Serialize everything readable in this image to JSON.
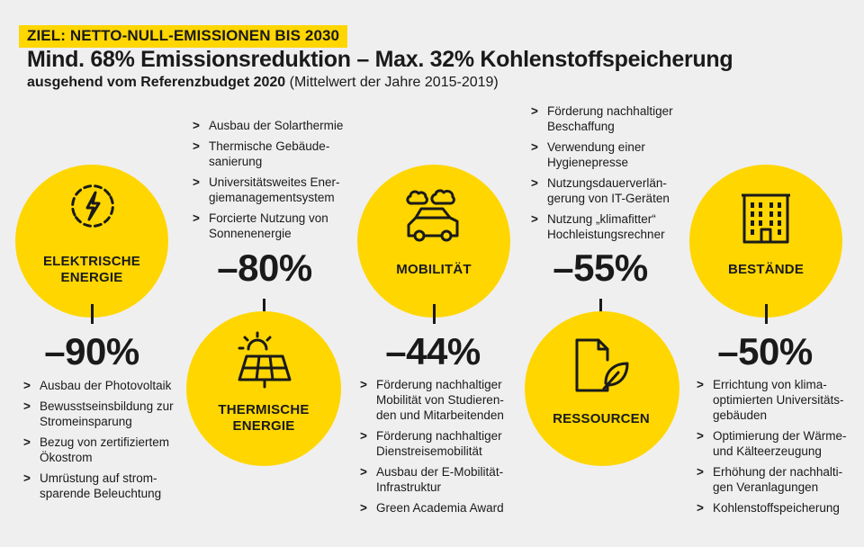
{
  "header": {
    "goal": "ZIEL: NETTO-NULL-EMISSIONEN BIS 2030",
    "title": "Mind. 68% Emissionsreduktion – Max. 32% Kohlenstoffspeicherung",
    "subtitle_bold": "ausgehend vom Referenzbudget 2020",
    "subtitle_rest": " (Mittelwert der Jahre 2015-2019)"
  },
  "colors": {
    "accent": "#ffd600",
    "background": "#efefef",
    "text": "#1a1a1a"
  },
  "sectors": [
    {
      "label_lines": [
        "ELEKTRISCHE",
        "ENERGIE"
      ],
      "icon": "lightning-bolt-icon",
      "reduction": "–90%",
      "measures": [
        [
          "Ausbau der Photovoltaik"
        ],
        [
          "Bewusstseinsbildung zur",
          "Stromeinsparung"
        ],
        [
          "Bezug von zertifiziertem",
          "Ökostrom"
        ],
        [
          "Umrüstung auf strom-",
          "sparende Beleuchtung"
        ]
      ]
    },
    {
      "label_lines": [
        "THERMISCHE",
        "ENERGIE"
      ],
      "icon": "solar-panel-sun-icon",
      "reduction": "–80%",
      "measures": [
        [
          "Ausbau der Solarthermie"
        ],
        [
          "Thermische Gebäude-",
          "sanierung"
        ],
        [
          "Universitätsweites Ener-",
          "giemanagementsystem"
        ],
        [
          "Forcierte Nutzung von",
          "Sonnenenergie"
        ]
      ]
    },
    {
      "label_lines": [
        "MOBILITÄT"
      ],
      "icon": "car-icon",
      "reduction": "–44%",
      "measures": [
        [
          "Förderung nachhaltiger",
          "Mobilität von Studieren-",
          "den und Mitarbeitenden"
        ],
        [
          "Förderung nachhaltiger",
          "Dienstreisemobilität"
        ],
        [
          "Ausbau der E-Mobilität-",
          "Infrastruktur"
        ],
        [
          "Green Academia Award"
        ]
      ]
    },
    {
      "label_lines": [
        "RESSOURCEN"
      ],
      "icon": "document-leaf-icon",
      "reduction": "–55%",
      "measures": [
        [
          "Förderung nachhaltiger",
          "Beschaffung"
        ],
        [
          "Verwendung einer",
          "Hygienepresse"
        ],
        [
          "Nutzungsdauerverlän-",
          "gerung von IT-Geräten"
        ],
        [
          "Nutzung „klimafitter“",
          "Hochleistungsrechner"
        ]
      ]
    },
    {
      "label_lines": [
        "BESTÄNDE"
      ],
      "icon": "building-icon",
      "reduction": "–50%",
      "measures": [
        [
          "Errichtung von klima-",
          "optimierten Universitäts-",
          "gebäuden"
        ],
        [
          "Optimierung der Wärme-",
          "und Kälteerzeugung"
        ],
        [
          "Erhöhung der nachhalti-",
          "gen Veranlagungen"
        ],
        [
          "Kohlenstoffspeicherung"
        ]
      ]
    }
  ]
}
